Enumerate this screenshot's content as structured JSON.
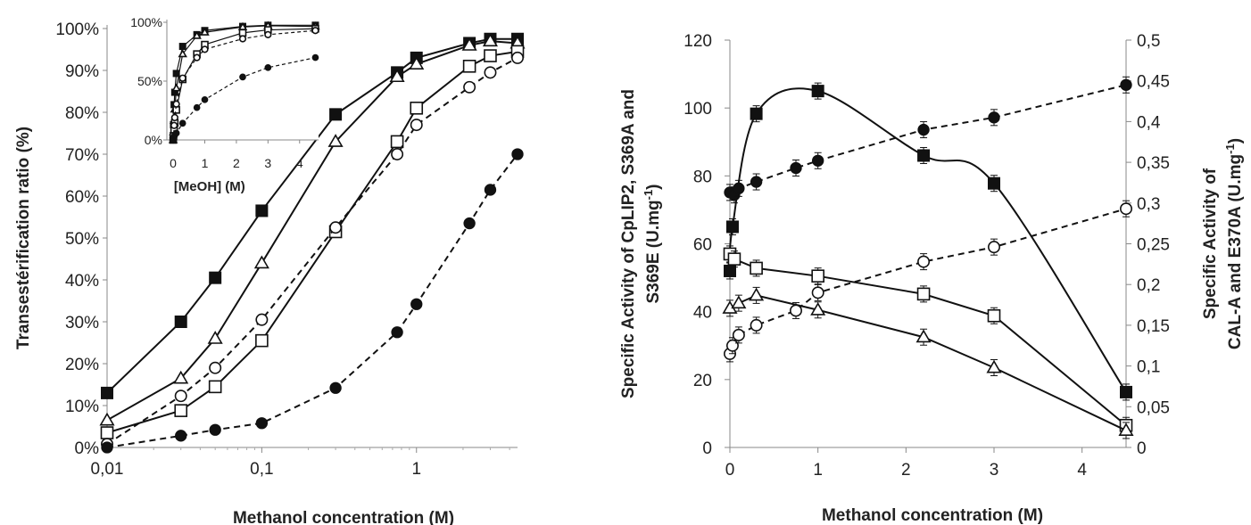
{
  "chart_data": [
    {
      "id": "left-main",
      "type": "line",
      "xscale": "log",
      "xlim": [
        0.01,
        4.5
      ],
      "ylim": [
        0,
        100
      ],
      "xlabel": "Methanol concentration (M)",
      "ylabel": "Transestérification ratio (%)",
      "x_ticks": [
        {
          "v": 0.01,
          "label": "0,01"
        },
        {
          "v": 0.1,
          "label": "0,1"
        },
        {
          "v": 1,
          "label": "1"
        }
      ],
      "y_ticks": [
        {
          "v": 0,
          "label": "0%"
        },
        {
          "v": 10,
          "label": "10%"
        },
        {
          "v": 20,
          "label": "20%"
        },
        {
          "v": 30,
          "label": "30%"
        },
        {
          "v": 40,
          "label": "40%"
        },
        {
          "v": 50,
          "label": "50%"
        },
        {
          "v": 60,
          "label": "60%"
        },
        {
          "v": 70,
          "label": "70%"
        },
        {
          "v": 80,
          "label": "80%"
        },
        {
          "v": 90,
          "label": "90%"
        },
        {
          "v": 100,
          "label": "100%"
        }
      ],
      "series": [
        {
          "marker": "filled-square",
          "dashed": false,
          "x": [
            0.01,
            0.03,
            0.05,
            0.1,
            0.3,
            0.75,
            1.0,
            2.2,
            3.0,
            4.5
          ],
          "y": [
            13,
            30,
            40.5,
            56.5,
            79.5,
            89.5,
            93,
            96.5,
            97.5,
            97.5
          ]
        },
        {
          "marker": "open-triangle",
          "dashed": false,
          "x": [
            0.01,
            0.03,
            0.05,
            0.1,
            0.3,
            0.75,
            1.0,
            2.2,
            3.0,
            4.5
          ],
          "y": [
            6.5,
            16.5,
            26,
            44,
            73,
            88.5,
            91.5,
            96,
            97,
            96.5
          ]
        },
        {
          "marker": "open-square",
          "dashed": false,
          "x": [
            0.01,
            0.03,
            0.05,
            0.1,
            0.3,
            0.75,
            1.0,
            2.2,
            3.0,
            4.5
          ],
          "y": [
            3.5,
            8.8,
            14.5,
            25.5,
            51.5,
            73,
            81,
            91,
            93.5,
            94.5
          ]
        },
        {
          "marker": "open-circle",
          "dashed": true,
          "x": [
            0.01,
            0.03,
            0.05,
            0.1,
            0.3,
            0.75,
            1.0,
            2.2,
            3.0,
            4.5
          ],
          "y": [
            0.8,
            12.3,
            19,
            30.5,
            52.5,
            70,
            77,
            86,
            89.5,
            93
          ]
        },
        {
          "marker": "filled-circle",
          "dashed": true,
          "x": [
            0.01,
            0.03,
            0.05,
            0.1,
            0.3,
            0.75,
            1.0,
            2.2,
            3.0,
            4.5
          ],
          "y": [
            0,
            2.8,
            4.2,
            5.8,
            14.2,
            27.5,
            34.2,
            53.5,
            61.5,
            70
          ]
        }
      ]
    },
    {
      "id": "left-inset",
      "type": "line",
      "xlim": [
        -0.2,
        4.6
      ],
      "ylim": [
        0,
        100
      ],
      "xlabel": "[MeOH] (M)",
      "x_ticks": [
        {
          "v": 0,
          "label": "0"
        },
        {
          "v": 1,
          "label": "1"
        },
        {
          "v": 2,
          "label": "2"
        },
        {
          "v": 3,
          "label": "3"
        },
        {
          "v": 4,
          "label": "4"
        }
      ],
      "y_ticks": [
        {
          "v": 0,
          "label": "0%"
        },
        {
          "v": 50,
          "label": "50%"
        },
        {
          "v": 100,
          "label": "100%"
        }
      ],
      "series": [
        {
          "marker": "filled-square",
          "dashed": false,
          "x": [
            0,
            0.01,
            0.03,
            0.05,
            0.1,
            0.3,
            0.75,
            1.0,
            2.2,
            3.0,
            4.5
          ],
          "y": [
            0,
            13,
            30,
            40.5,
            56.5,
            79.5,
            89.5,
            93,
            96.5,
            97.5,
            97.5
          ]
        },
        {
          "marker": "open-triangle",
          "dashed": false,
          "x": [
            0,
            0.01,
            0.03,
            0.05,
            0.1,
            0.3,
            0.75,
            1.0,
            2.2,
            3.0,
            4.5
          ],
          "y": [
            0,
            6.5,
            16.5,
            26,
            44,
            73,
            88.5,
            91.5,
            96,
            97,
            96.5
          ]
        },
        {
          "marker": "open-square",
          "dashed": false,
          "x": [
            0,
            0.01,
            0.03,
            0.05,
            0.1,
            0.3,
            0.75,
            1.0,
            2.2,
            3.0,
            4.5
          ],
          "y": [
            0,
            3.5,
            8.8,
            14.5,
            25.5,
            51.5,
            73,
            81,
            91,
            93.5,
            94.5
          ]
        },
        {
          "marker": "open-circle",
          "dashed": true,
          "x": [
            0,
            0.01,
            0.03,
            0.05,
            0.1,
            0.3,
            0.75,
            1.0,
            2.2,
            3.0,
            4.5
          ],
          "y": [
            0,
            0.8,
            12.3,
            19,
            30.5,
            52.5,
            70,
            77,
            86,
            89.5,
            93
          ]
        },
        {
          "marker": "filled-circle",
          "dashed": true,
          "x": [
            0,
            0.01,
            0.03,
            0.05,
            0.1,
            0.3,
            0.75,
            1.0,
            2.2,
            3.0,
            4.5
          ],
          "y": [
            0,
            0,
            2.8,
            4.2,
            5.8,
            14.2,
            27.5,
            34.2,
            53.5,
            61.5,
            70
          ]
        }
      ]
    },
    {
      "id": "right",
      "type": "line",
      "xlim": [
        0,
        4.5
      ],
      "ylim": [
        0,
        120
      ],
      "y2lim": [
        0,
        0.5
      ],
      "xlabel": "Methanol concentration (M)",
      "ylabel": "Specific Activity of CpLIP2, S369A and S369E (U.mg-1)",
      "ylabel_lines": [
        "Specific Activity of CpLIP2, S369A and",
        "S369E (U.mg",
        "-1",
        ")"
      ],
      "y2label": "Specific Activity of CAL-A and E370A (U.mg-1)",
      "y2label_lines": [
        "Specific Activity of",
        "CAL-A and E370A (U.mg",
        "-1",
        ")"
      ],
      "x_ticks": [
        {
          "v": 0,
          "label": "0"
        },
        {
          "v": 1,
          "label": "1"
        },
        {
          "v": 2,
          "label": "2"
        },
        {
          "v": 3,
          "label": "3"
        },
        {
          "v": 4,
          "label": "4"
        }
      ],
      "y_ticks": [
        {
          "v": 0,
          "label": "0"
        },
        {
          "v": 20,
          "label": "20"
        },
        {
          "v": 40,
          "label": "40"
        },
        {
          "v": 60,
          "label": "60"
        },
        {
          "v": 80,
          "label": "80"
        },
        {
          "v": 100,
          "label": "100"
        },
        {
          "v": 120,
          "label": "120"
        }
      ],
      "y2_ticks": [
        {
          "v": 0,
          "label": "0"
        },
        {
          "v": 0.05,
          "label": "0,05"
        },
        {
          "v": 0.1,
          "label": "0,1"
        },
        {
          "v": 0.15,
          "label": "0,15"
        },
        {
          "v": 0.2,
          "label": "0,2"
        },
        {
          "v": 0.25,
          "label": "0,25"
        },
        {
          "v": 0.3,
          "label": "0,3"
        },
        {
          "v": 0.35,
          "label": "0,35"
        },
        {
          "v": 0.4,
          "label": "0,4"
        },
        {
          "v": 0.45,
          "label": "0,45"
        },
        {
          "v": 0.5,
          "label": "0,5"
        }
      ],
      "series": [
        {
          "marker": "filled-square",
          "dashed": false,
          "smooth": true,
          "axis": "left",
          "x": [
            0,
            0.03,
            0.3,
            1.0,
            2.2,
            3.0,
            4.5
          ],
          "y": [
            52,
            65,
            98.3,
            105,
            86,
            77.8,
            16.3
          ]
        },
        {
          "marker": "open-square",
          "dashed": false,
          "axis": "left",
          "x": [
            0,
            0.05,
            0.3,
            1.0,
            2.2,
            3.0,
            4.5
          ],
          "y": [
            57,
            55.5,
            52.8,
            50.5,
            45.2,
            38.8,
            6.5
          ]
        },
        {
          "marker": "open-triangle",
          "dashed": false,
          "axis": "left",
          "x": [
            0,
            0.1,
            0.3,
            1.0,
            2.2,
            3.0,
            4.5
          ],
          "y": [
            41,
            42.5,
            44.8,
            40.5,
            32.5,
            23.5,
            5
          ]
        },
        {
          "marker": "filled-circle",
          "dashed": true,
          "axis": "right",
          "x": [
            0,
            0.05,
            0.1,
            0.3,
            0.75,
            1.0,
            2.2,
            3.0,
            4.5
          ],
          "y": [
            0.313,
            0.31,
            0.318,
            0.326,
            0.343,
            0.352,
            0.39,
            0.405,
            0.445
          ]
        },
        {
          "marker": "open-circle",
          "dashed": true,
          "axis": "right",
          "x": [
            0,
            0.03,
            0.1,
            0.3,
            0.75,
            1.0,
            2.2,
            3.0,
            4.5
          ],
          "y": [
            0.115,
            0.125,
            0.138,
            0.15,
            0.168,
            0.19,
            0.228,
            0.246,
            0.293
          ]
        }
      ]
    }
  ]
}
